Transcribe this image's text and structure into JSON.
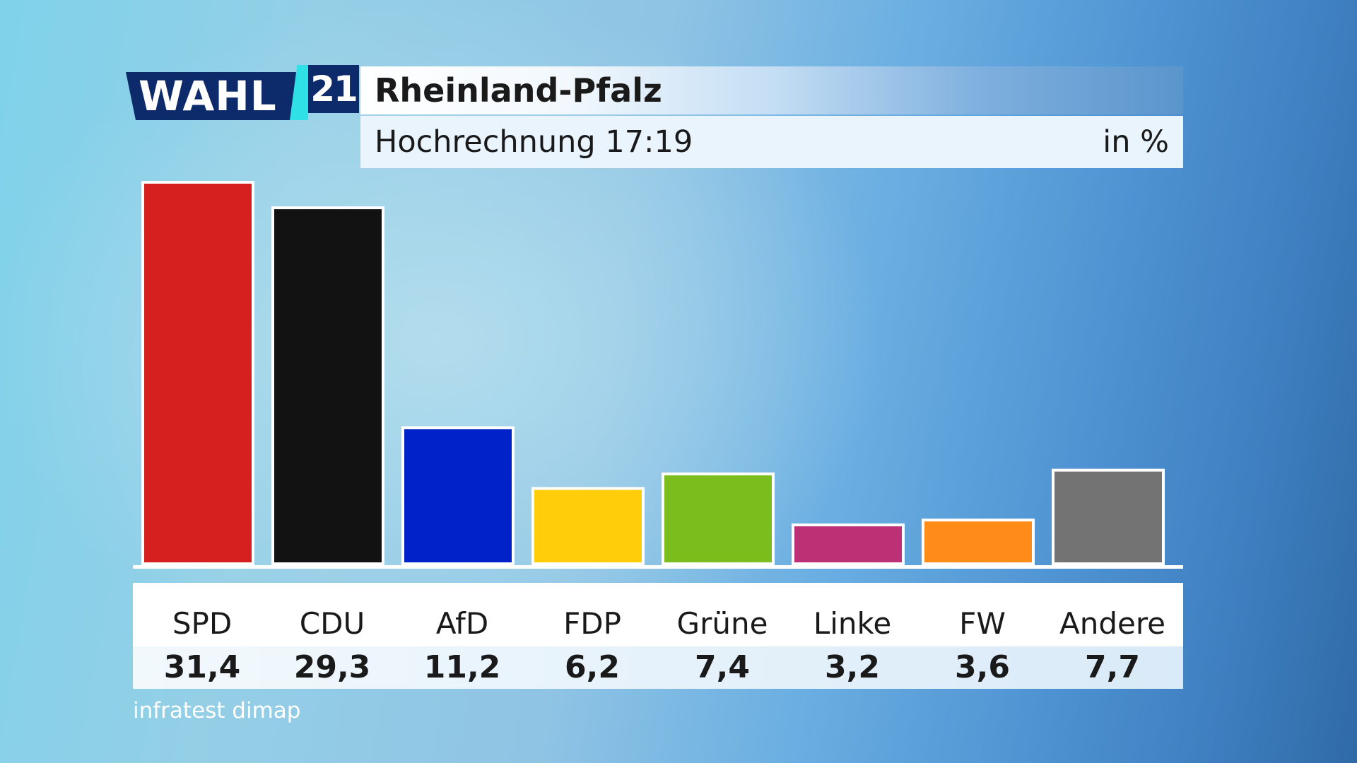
{
  "logo": {
    "word": "WAHL",
    "number": "21"
  },
  "header": {
    "title": "Rheinland-Pfalz",
    "subtitle": "Hochrechnung 17:19",
    "unit": "in %"
  },
  "source": "infratest dimap",
  "chart_data": {
    "type": "bar",
    "title": "Rheinland-Pfalz",
    "subtitle": "Hochrechnung 17:19",
    "unit": "in %",
    "categories": [
      "SPD",
      "CDU",
      "AfD",
      "FDP",
      "Grüne",
      "Linke",
      "FW",
      "Andere"
    ],
    "values": [
      31.4,
      29.3,
      11.2,
      6.2,
      7.4,
      3.2,
      3.6,
      7.7
    ],
    "value_labels": [
      "31,4",
      "29,3",
      "11,2",
      "6,2",
      "7,4",
      "3,2",
      "3,6",
      "7,7"
    ],
    "colors": [
      "#d62020",
      "#121212",
      "#0022c8",
      "#ffcd0a",
      "#7bbd1c",
      "#bd3076",
      "#ff8c18",
      "#737373"
    ],
    "ylim": [
      0,
      31.4
    ],
    "grid": false,
    "legend": "bottom"
  }
}
